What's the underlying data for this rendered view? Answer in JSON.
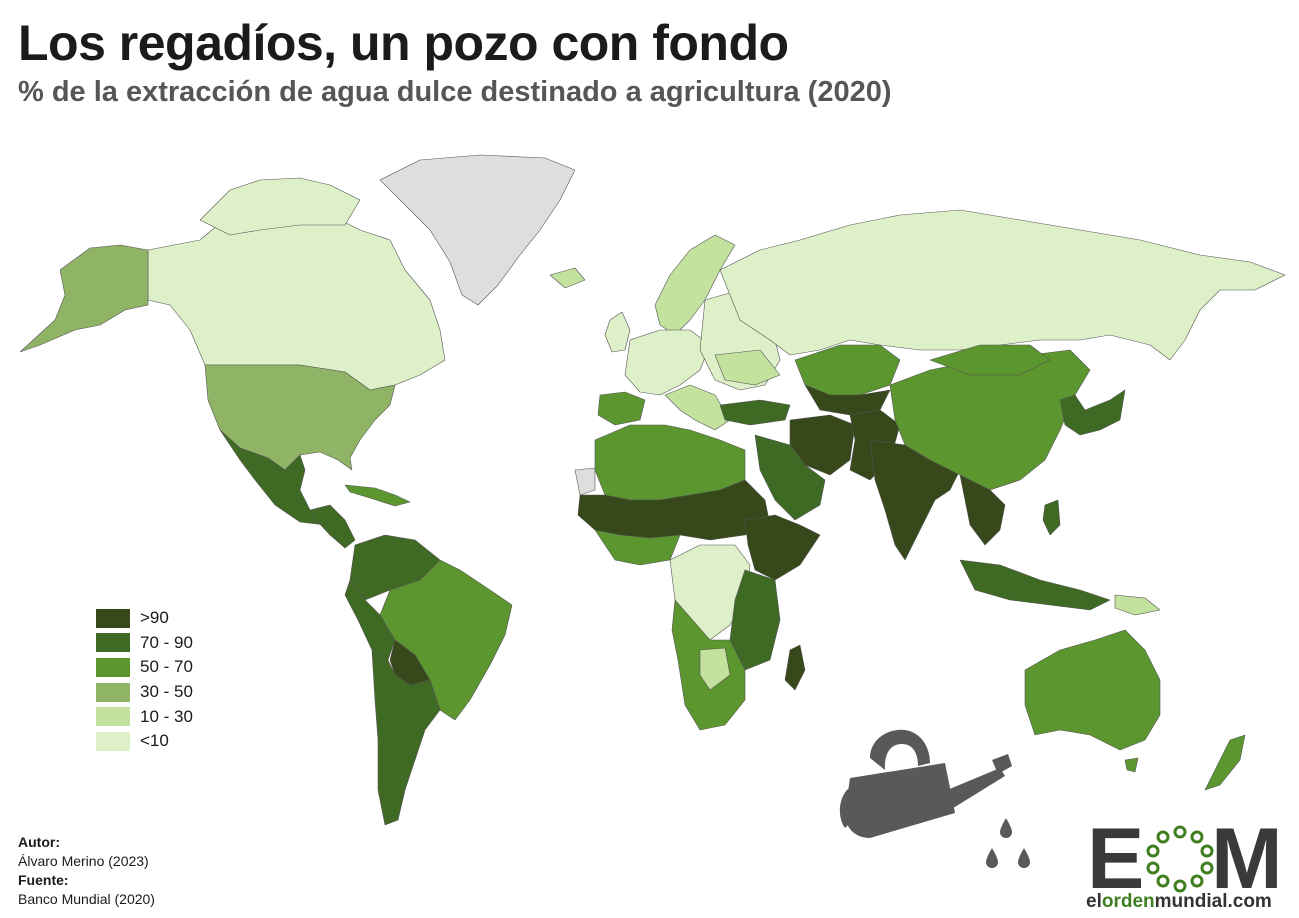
{
  "header": {
    "title": "Los regadíos, un pozo con fondo",
    "subtitle": "% de la extracción de agua dulce destinado a agricultura (2020)"
  },
  "legend": {
    "items": [
      {
        "label": ">90",
        "color": "#37481a"
      },
      {
        "label": "70 - 90",
        "color": "#3f6a23"
      },
      {
        "label": "50 - 70",
        "color": "#5c962e"
      },
      {
        "label": "30 - 50",
        "color": "#8fb465"
      },
      {
        "label": "10 - 30",
        "color": "#c2e29e"
      },
      {
        "label": "<10",
        "color": "#ddf0c8"
      }
    ],
    "no_data_color": "#dededc"
  },
  "credits": {
    "author_heading": "Autor:",
    "author": "Álvaro Merino (2023)",
    "source_heading": "Fuente:",
    "source": "Banco Mundial (2020)"
  },
  "logo": {
    "letters_left": "E",
    "letters_right": "M",
    "url_prefix": "el",
    "url_mid": "orden",
    "url_suffix": "mundial.com",
    "color": "#3a3a3a",
    "accent": "#3f7f22"
  },
  "illustration": {
    "icon": "watering-can-icon",
    "color": "#595959"
  }
}
